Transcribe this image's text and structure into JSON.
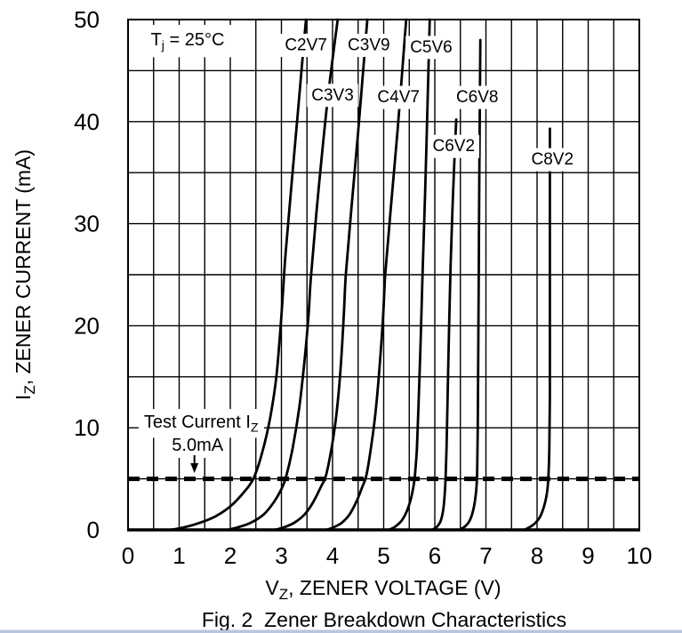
{
  "colors": {
    "ink": "#000000",
    "background": "#ffffff",
    "footer_bar": "#b7c5de"
  },
  "chart_data": {
    "type": "line",
    "title": "Fig. 2  Zener Breakdown Characteristics",
    "condition_label_parts": [
      {
        "t": "T"
      },
      {
        "t": "j",
        "sub": true
      },
      {
        "t": " = 25°C"
      }
    ],
    "xlabel_parts": [
      {
        "t": "V"
      },
      {
        "t": "Z",
        "sub": true
      },
      {
        "t": ", ZENER VOLTAGE (V)"
      }
    ],
    "ylabel_parts": [
      {
        "t": "I"
      },
      {
        "t": "Z",
        "sub": true
      },
      {
        "t": ", ZENER CURRENT (mA)"
      }
    ],
    "x_axis": {
      "min": 0,
      "max": 10,
      "grid_step": 0.5,
      "ticks": [
        0,
        1,
        2,
        3,
        4,
        5,
        6,
        7,
        8,
        9,
        10
      ]
    },
    "y_axis": {
      "min": 0,
      "max": 50,
      "grid_step": 5,
      "ticks": [
        0,
        10,
        20,
        30,
        40,
        50
      ]
    },
    "grid": true,
    "legend": "none",
    "test_current": {
      "line1_parts": [
        {
          "t": "Test Current I"
        },
        {
          "t": "Z",
          "sub": true
        }
      ],
      "line2": "5.0mA",
      "value_mA": 5,
      "label_center_v": 1.36,
      "arrow_v": 1.29
    },
    "dashed_line_mA": 5,
    "series": [
      {
        "name": "C2V7",
        "label_at": {
          "v": 3.48,
          "i": 47.6
        },
        "points": [
          [
            0.82,
            0
          ],
          [
            1.05,
            0.2
          ],
          [
            1.35,
            0.6
          ],
          [
            1.7,
            1.3
          ],
          [
            2.0,
            2.3
          ],
          [
            2.25,
            3.6
          ],
          [
            2.45,
            5
          ],
          [
            2.62,
            7.5
          ],
          [
            2.78,
            11
          ],
          [
            2.9,
            15
          ],
          [
            3.0,
            21
          ],
          [
            3.08,
            27
          ],
          [
            3.2,
            34
          ],
          [
            3.34,
            42
          ],
          [
            3.48,
            50
          ]
        ]
      },
      {
        "name": "C3V3",
        "label_at": {
          "v": 4.0,
          "i": 42.7
        },
        "points": [
          [
            1.95,
            0
          ],
          [
            2.15,
            0.25
          ],
          [
            2.4,
            0.7
          ],
          [
            2.65,
            1.5
          ],
          [
            2.85,
            2.7
          ],
          [
            3.0,
            4.0
          ],
          [
            3.09,
            5.2
          ],
          [
            3.22,
            8
          ],
          [
            3.35,
            12
          ],
          [
            3.45,
            16.5
          ],
          [
            3.53,
            21
          ],
          [
            3.58,
            25
          ],
          [
            3.72,
            33
          ],
          [
            3.9,
            42
          ],
          [
            4.1,
            50
          ]
        ]
      },
      {
        "name": "C3V9",
        "label_at": {
          "v": 4.71,
          "i": 47.6
        },
        "points": [
          [
            2.87,
            0
          ],
          [
            3.05,
            0.25
          ],
          [
            3.25,
            0.7
          ],
          [
            3.45,
            1.5
          ],
          [
            3.62,
            2.7
          ],
          [
            3.77,
            4.2
          ],
          [
            3.87,
            5.3
          ],
          [
            3.98,
            8
          ],
          [
            4.08,
            11.5
          ],
          [
            4.16,
            16
          ],
          [
            4.22,
            21
          ],
          [
            4.26,
            25
          ],
          [
            4.36,
            31
          ],
          [
            4.5,
            39
          ],
          [
            4.68,
            50
          ]
        ]
      },
      {
        "name": "C4V7",
        "label_at": {
          "v": 5.29,
          "i": 42.5
        },
        "points": [
          [
            3.88,
            0
          ],
          [
            4.02,
            0.25
          ],
          [
            4.18,
            0.7
          ],
          [
            4.33,
            1.5
          ],
          [
            4.47,
            2.8
          ],
          [
            4.58,
            4.2
          ],
          [
            4.66,
            5.3
          ],
          [
            4.75,
            8
          ],
          [
            4.84,
            11.5
          ],
          [
            4.92,
            16
          ],
          [
            4.99,
            21
          ],
          [
            5.03,
            25
          ],
          [
            5.13,
            31
          ],
          [
            5.27,
            39
          ],
          [
            5.44,
            50
          ]
        ]
      },
      {
        "name": "C5V6",
        "label_at": {
          "v": 5.93,
          "i": 47.4
        },
        "points": [
          [
            5.1,
            0
          ],
          [
            5.22,
            0.3
          ],
          [
            5.35,
            0.9
          ],
          [
            5.45,
            1.8
          ],
          [
            5.53,
            3.0
          ],
          [
            5.58,
            4.2
          ],
          [
            5.61,
            5.3
          ],
          [
            5.65,
            8
          ],
          [
            5.68,
            12
          ],
          [
            5.72,
            18
          ],
          [
            5.76,
            25
          ],
          [
            5.81,
            33
          ],
          [
            5.86,
            42
          ],
          [
            5.9,
            50
          ]
        ]
      },
      {
        "name": "C6V2",
        "label_at": {
          "v": 6.37,
          "i": 37.7
        },
        "points": [
          [
            5.95,
            0
          ],
          [
            6.04,
            0.3
          ],
          [
            6.11,
            0.8
          ],
          [
            6.16,
            1.8
          ],
          [
            6.19,
            3.2
          ],
          [
            6.21,
            5
          ],
          [
            6.23,
            8
          ],
          [
            6.25,
            13
          ],
          [
            6.28,
            20
          ],
          [
            6.31,
            26
          ],
          [
            6.35,
            32
          ],
          [
            6.39,
            37
          ],
          [
            6.42,
            40.2
          ]
        ]
      },
      {
        "name": "C6V8",
        "label_at": {
          "v": 6.83,
          "i": 42.5
        },
        "points": [
          [
            6.48,
            0
          ],
          [
            6.58,
            0.3
          ],
          [
            6.67,
            0.8
          ],
          [
            6.74,
            1.7
          ],
          [
            6.79,
            3.0
          ],
          [
            6.82,
            4.5
          ],
          [
            6.83,
            6
          ],
          [
            6.84,
            10
          ],
          [
            6.85,
            18
          ],
          [
            6.86,
            26
          ],
          [
            6.87,
            34
          ],
          [
            6.88,
            41
          ],
          [
            6.89,
            48
          ]
        ]
      },
      {
        "name": "C8V2",
        "label_at": {
          "v": 8.3,
          "i": 36.4
        },
        "points": [
          [
            7.75,
            0
          ],
          [
            7.85,
            0.25
          ],
          [
            7.95,
            0.6
          ],
          [
            8.05,
            1.2
          ],
          [
            8.13,
            2.2
          ],
          [
            8.19,
            3.5
          ],
          [
            8.22,
            5
          ],
          [
            8.24,
            8
          ],
          [
            8.25,
            13
          ],
          [
            8.25,
            22
          ],
          [
            8.25,
            30
          ],
          [
            8.25,
            39.3
          ]
        ]
      }
    ]
  }
}
